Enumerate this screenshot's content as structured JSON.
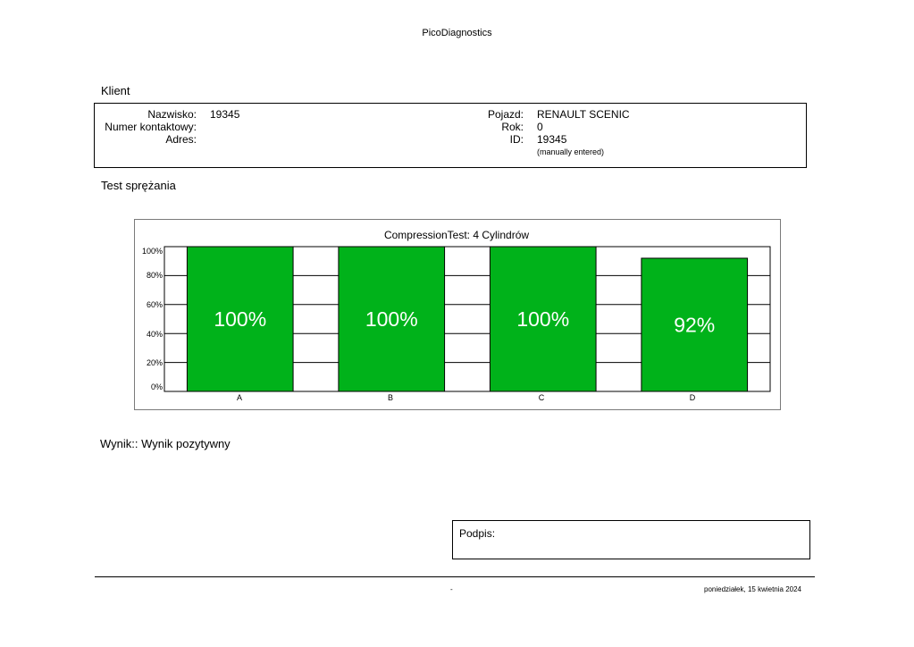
{
  "app_title": "PicoDiagnostics",
  "client": {
    "heading": "Klient",
    "name_label": "Nazwisko:",
    "name_value": "19345",
    "phone_label": "Numer kontaktowy:",
    "phone_value": "",
    "address_label": "Adres:",
    "address_value": "",
    "vehicle_label": "Pojazd:",
    "vehicle_value": "RENAULT SCENIC",
    "year_label": "Rok:",
    "year_value": "0",
    "id_label": "ID:",
    "id_value": "19345",
    "id_note": "(manually entered)"
  },
  "test": {
    "heading": "Test sprężania"
  },
  "chart_data": {
    "type": "bar",
    "title": "CompressionTest: 4 Cylindrów",
    "categories": [
      "A",
      "B",
      "C",
      "D"
    ],
    "values": [
      100,
      100,
      100,
      92
    ],
    "value_labels": [
      "100%",
      "100%",
      "100%",
      "92%"
    ],
    "y_ticks": [
      "0%",
      "20%",
      "40%",
      "60%",
      "80%",
      "100%"
    ],
    "ylim": [
      0,
      100
    ],
    "grid": true,
    "bar_color": "#00b21a",
    "xlabel": "",
    "ylabel": ""
  },
  "result": {
    "text": "Wynik:: Wynik pozytywny"
  },
  "signature": {
    "label": "Podpis:"
  },
  "footer": {
    "center": "-",
    "date": "poniedziałek, 15 kwietnia 2024"
  }
}
